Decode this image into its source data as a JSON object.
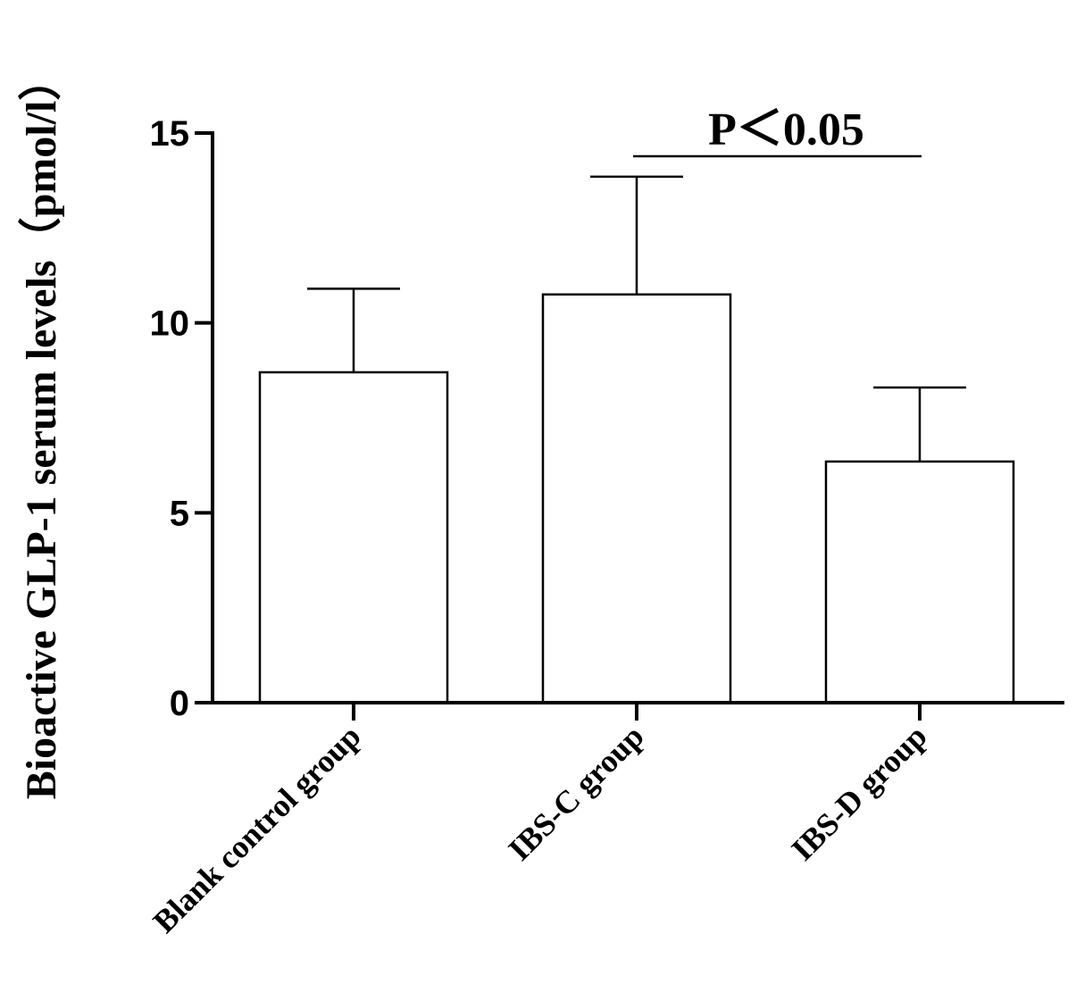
{
  "chart_data": {
    "type": "bar",
    "categories": [
      "Blank control group",
      "IBS-C group",
      "IBS-D group"
    ],
    "values": [
      8.7,
      10.75,
      6.35
    ],
    "error_upper": [
      10.9,
      13.85,
      8.3
    ],
    "ylabel": "Bioactive GLP-1 serum levels（pmol/l）",
    "xlabel": "",
    "ylim": [
      0,
      15
    ],
    "yticks": [
      0,
      5,
      10,
      15
    ],
    "ytick_labels": [
      "0",
      "5",
      "10",
      "15"
    ],
    "grid": false,
    "bar_fill": "#ffffff",
    "bar_stroke": "#000000",
    "annotation": {
      "text": "P＜0.05",
      "between": [
        "IBS-C group",
        "IBS-D group"
      ]
    }
  }
}
